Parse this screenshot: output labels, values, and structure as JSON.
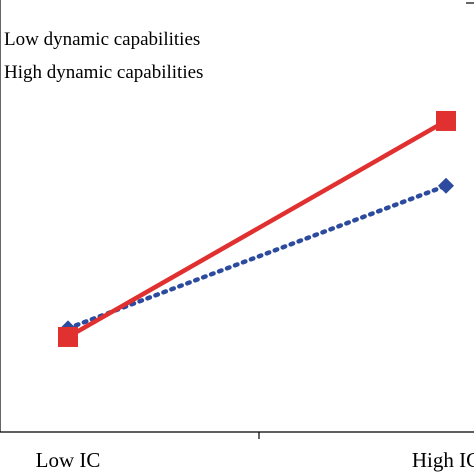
{
  "chart_data": {
    "type": "line",
    "categories": [
      "Low IC",
      "High IC"
    ],
    "series": [
      {
        "name": "Low dynamic capabilities",
        "values": [
          2.4,
          5.7
        ],
        "color": "#2c4a9e",
        "line_style": "dotted",
        "marker": "diamond"
      },
      {
        "name": "High dynamic capabilities",
        "values": [
          2.2,
          7.2
        ],
        "color": "#e03030",
        "line_style": "solid",
        "marker": "square"
      }
    ],
    "ylim": [
      0,
      10
    ],
    "grid": false,
    "legend_position": "top-left"
  }
}
